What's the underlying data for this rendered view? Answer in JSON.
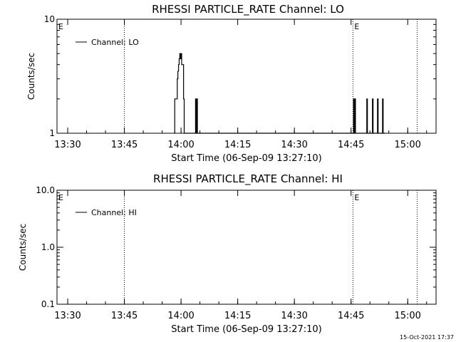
{
  "figure": {
    "timestamp": "15-Oct-2021 17:37",
    "colors": {
      "background": "#ffffff",
      "foreground": "#000000"
    }
  },
  "chart_data": [
    {
      "type": "line",
      "title": "RHESSI PARTICLE_RATE Channel: LO",
      "xlabel": "Start Time (06-Sep-09 13:27:10)",
      "ylabel": "Counts/sec",
      "yscale": "log",
      "ylim": [
        1,
        10
      ],
      "ytick_labels": [
        "1",
        "10"
      ],
      "xlim": [
        "13:27:10",
        "15:07:30"
      ],
      "xtick_labels": [
        "13:30",
        "13:45",
        "14:00",
        "14:15",
        "14:30",
        "14:45",
        "15:00"
      ],
      "event_lines": [
        "13:45:00",
        "14:45:30",
        "15:02:30"
      ],
      "event_markers": [
        {
          "time": "13:27:10",
          "label": "E"
        },
        {
          "time": "14:45:30",
          "label": "E"
        }
      ],
      "legend": {
        "location": "top-left",
        "entries": [
          "Channel: LO"
        ]
      },
      "series": [
        {
          "name": "Channel: LO",
          "x": [
            "13:58:10",
            "13:58:20",
            "13:58:40",
            "13:59:00",
            "13:59:10",
            "13:59:20",
            "13:59:30",
            "13:59:40",
            "13:59:50",
            "14:00:00",
            "14:00:10",
            "14:00:20",
            "14:00:40",
            "14:00:50",
            "14:03:40",
            "14:03:50",
            "14:04:00",
            "14:04:10",
            "14:04:20",
            "14:04:30",
            "14:45:30",
            "14:45:40",
            "14:45:50",
            "14:46:00",
            "14:46:10",
            "14:46:20",
            "14:49:00",
            "14:49:10",
            "14:49:20",
            "14:49:30",
            "14:50:30",
            "14:50:40",
            "14:50:50",
            "14:51:00",
            "14:51:50",
            "14:52:00",
            "14:52:10",
            "14:52:20",
            "14:53:10",
            "14:53:20",
            "14:53:30",
            "14:53:40"
          ],
          "values": [
            1,
            2,
            2,
            3,
            3.5,
            4,
            4.5,
            5,
            4.5,
            5,
            4,
            4,
            2,
            1,
            1,
            2,
            1,
            2,
            1,
            1,
            1,
            2,
            1,
            2,
            1,
            1,
            1,
            2,
            1,
            1,
            1,
            2,
            1,
            1,
            1,
            2,
            1,
            1,
            1,
            2,
            1,
            1
          ]
        }
      ]
    },
    {
      "type": "line",
      "title": "RHESSI PARTICLE_RATE Channel: HI",
      "xlabel": "Start Time (06-Sep-09 13:27:10)",
      "ylabel": "Counts/sec",
      "yscale": "log",
      "ylim": [
        0.1,
        10
      ],
      "ytick_labels": [
        "0.1",
        "1.0",
        "10.0"
      ],
      "xlim": [
        "13:27:10",
        "15:07:30"
      ],
      "xtick_labels": [
        "13:30",
        "13:45",
        "14:00",
        "14:15",
        "14:30",
        "14:45",
        "15:00"
      ],
      "event_lines": [
        "13:45:00",
        "14:45:30",
        "15:02:30"
      ],
      "event_markers": [
        {
          "time": "13:27:10",
          "label": "E"
        },
        {
          "time": "14:45:30",
          "label": "E"
        }
      ],
      "legend": {
        "location": "top-left",
        "entries": [
          "Channel: HI"
        ]
      },
      "series": [
        {
          "name": "Channel: HI",
          "x": [],
          "values": []
        }
      ]
    }
  ]
}
